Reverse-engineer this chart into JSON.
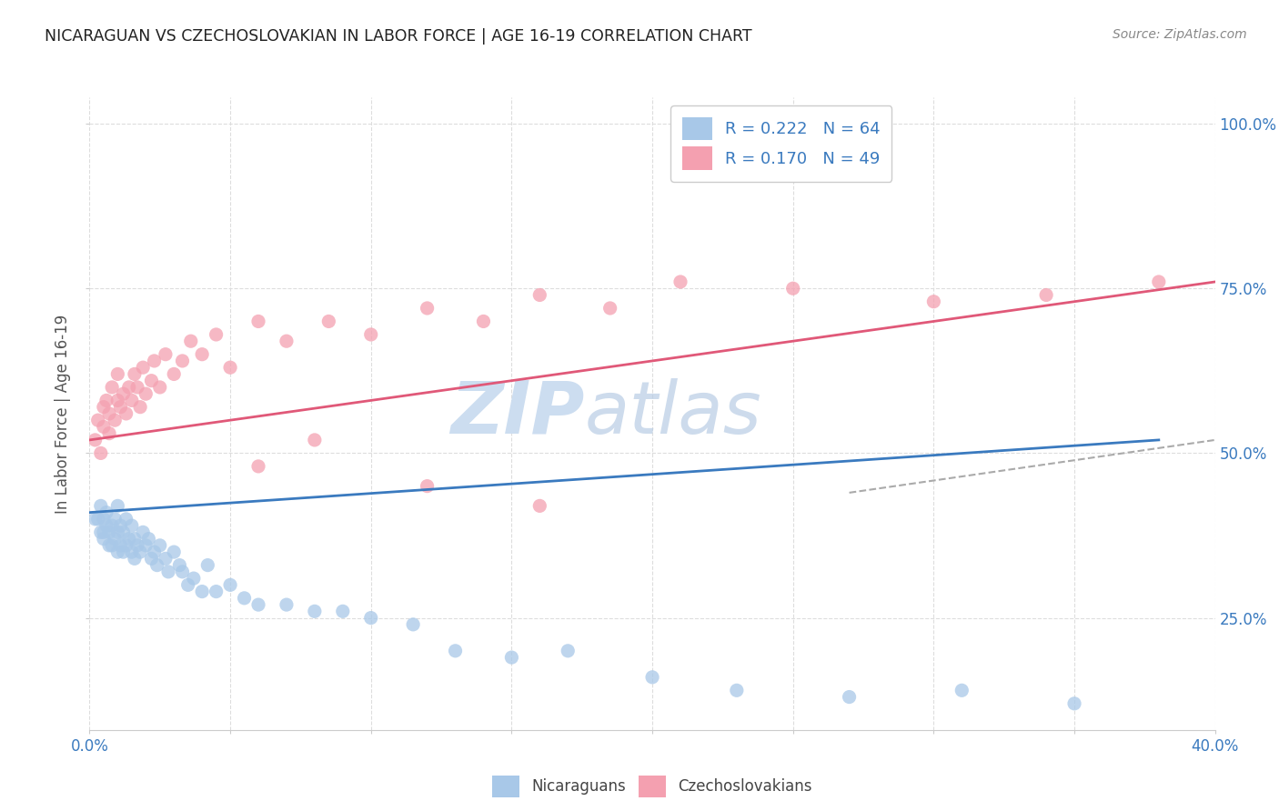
{
  "title": "NICARAGUAN VS CZECHOSLOVAKIAN IN LABOR FORCE | AGE 16-19 CORRELATION CHART",
  "source": "Source: ZipAtlas.com",
  "ylabel": "In Labor Force | Age 16-19",
  "legend_blue_r": "R = 0.222",
  "legend_blue_n": "N = 64",
  "legend_pink_r": "R = 0.170",
  "legend_pink_n": "N = 49",
  "blue_color": "#a8c8e8",
  "pink_color": "#f4a0b0",
  "blue_line_color": "#3a7abf",
  "pink_line_color": "#e05878",
  "title_color": "#222222",
  "right_axis_color": "#3a7abf",
  "xlim": [
    0.0,
    0.4
  ],
  "ylim": [
    0.08,
    1.04
  ],
  "ytick_vals": [
    0.25,
    0.5,
    0.75,
    1.0
  ],
  "ytick_labels": [
    "25.0%",
    "50.0%",
    "75.0%",
    "100.0%"
  ],
  "xtick_vals": [
    0.0,
    0.05,
    0.1,
    0.15,
    0.2,
    0.25,
    0.3,
    0.35,
    0.4
  ],
  "nicaraguan_x": [
    0.002,
    0.003,
    0.004,
    0.004,
    0.005,
    0.005,
    0.005,
    0.006,
    0.006,
    0.007,
    0.007,
    0.008,
    0.008,
    0.009,
    0.009,
    0.01,
    0.01,
    0.01,
    0.011,
    0.011,
    0.012,
    0.012,
    0.013,
    0.013,
    0.014,
    0.015,
    0.015,
    0.016,
    0.016,
    0.017,
    0.018,
    0.019,
    0.02,
    0.021,
    0.022,
    0.023,
    0.024,
    0.025,
    0.027,
    0.028,
    0.03,
    0.032,
    0.033,
    0.035,
    0.037,
    0.04,
    0.042,
    0.045,
    0.05,
    0.055,
    0.06,
    0.07,
    0.08,
    0.09,
    0.1,
    0.115,
    0.13,
    0.15,
    0.17,
    0.2,
    0.23,
    0.27,
    0.31,
    0.35
  ],
  "nicaraguan_y": [
    0.4,
    0.4,
    0.42,
    0.38,
    0.4,
    0.38,
    0.37,
    0.39,
    0.41,
    0.38,
    0.36,
    0.39,
    0.36,
    0.4,
    0.37,
    0.42,
    0.38,
    0.35,
    0.39,
    0.36,
    0.38,
    0.35,
    0.4,
    0.36,
    0.37,
    0.39,
    0.35,
    0.37,
    0.34,
    0.36,
    0.35,
    0.38,
    0.36,
    0.37,
    0.34,
    0.35,
    0.33,
    0.36,
    0.34,
    0.32,
    0.35,
    0.33,
    0.32,
    0.3,
    0.31,
    0.29,
    0.33,
    0.29,
    0.3,
    0.28,
    0.27,
    0.27,
    0.26,
    0.26,
    0.25,
    0.24,
    0.2,
    0.19,
    0.2,
    0.16,
    0.14,
    0.13,
    0.14,
    0.12
  ],
  "czechoslovakian_x": [
    0.002,
    0.003,
    0.004,
    0.005,
    0.005,
    0.006,
    0.007,
    0.007,
    0.008,
    0.009,
    0.01,
    0.01,
    0.011,
    0.012,
    0.013,
    0.014,
    0.015,
    0.016,
    0.017,
    0.018,
    0.019,
    0.02,
    0.022,
    0.023,
    0.025,
    0.027,
    0.03,
    0.033,
    0.036,
    0.04,
    0.045,
    0.05,
    0.06,
    0.07,
    0.085,
    0.1,
    0.12,
    0.14,
    0.16,
    0.185,
    0.21,
    0.25,
    0.3,
    0.34,
    0.38,
    0.06,
    0.08,
    0.12,
    0.16
  ],
  "czechoslovakian_y": [
    0.52,
    0.55,
    0.5,
    0.57,
    0.54,
    0.58,
    0.53,
    0.56,
    0.6,
    0.55,
    0.62,
    0.58,
    0.57,
    0.59,
    0.56,
    0.6,
    0.58,
    0.62,
    0.6,
    0.57,
    0.63,
    0.59,
    0.61,
    0.64,
    0.6,
    0.65,
    0.62,
    0.64,
    0.67,
    0.65,
    0.68,
    0.63,
    0.7,
    0.67,
    0.7,
    0.68,
    0.72,
    0.7,
    0.74,
    0.72,
    0.76,
    0.75,
    0.73,
    0.74,
    0.76,
    0.48,
    0.52,
    0.45,
    0.42
  ],
  "blue_trend_x": [
    0.0,
    0.38
  ],
  "blue_trend_y": [
    0.41,
    0.52
  ],
  "pink_trend_x": [
    0.0,
    0.4
  ],
  "pink_trend_y": [
    0.52,
    0.76
  ],
  "dash_trend_x": [
    0.27,
    0.4
  ],
  "dash_trend_y": [
    0.44,
    0.52
  ]
}
